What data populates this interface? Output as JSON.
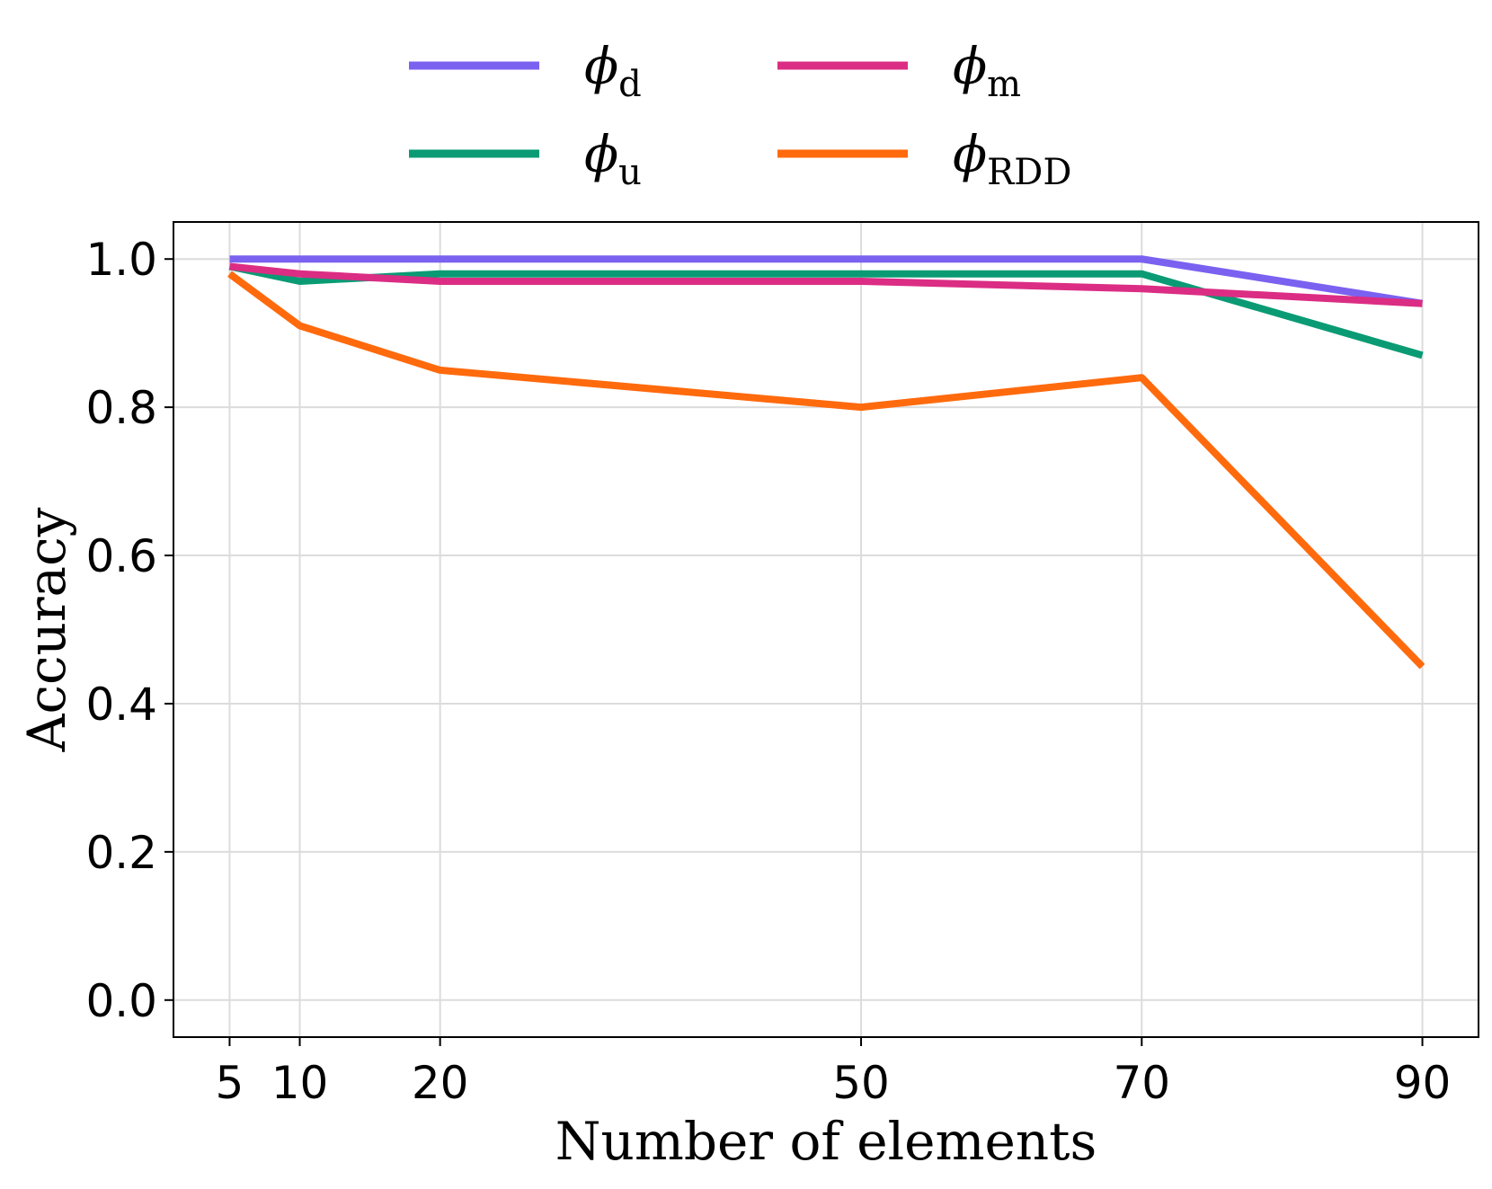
{
  "chart_data": {
    "type": "line",
    "title": "",
    "xlabel": "Number of elements",
    "ylabel": "Accuracy",
    "x": [
      5,
      10,
      20,
      50,
      70,
      90
    ],
    "xticks": [
      "5",
      "10",
      "20",
      "50",
      "70",
      "90"
    ],
    "yticks": [
      "0.0",
      "0.2",
      "0.4",
      "0.6",
      "0.8",
      "1.0"
    ],
    "xlim": [
      1,
      94
    ],
    "ylim": [
      -0.05,
      1.05
    ],
    "grid": true,
    "legend_position": "top",
    "series": [
      {
        "name": "ϕd",
        "symbol": "ϕ",
        "subscript": "d",
        "color": "#7B61F0",
        "values": [
          1.0,
          1.0,
          1.0,
          1.0,
          1.0,
          0.94
        ]
      },
      {
        "name": "ϕu",
        "symbol": "ϕ",
        "subscript": "u",
        "color": "#0A9B74",
        "values": [
          0.99,
          0.97,
          0.98,
          0.98,
          0.98,
          0.87
        ]
      },
      {
        "name": "ϕm",
        "symbol": "ϕ",
        "subscript": "m",
        "color": "#DB2D84",
        "values": [
          0.99,
          0.98,
          0.97,
          0.97,
          0.96,
          0.94
        ]
      },
      {
        "name": "ϕRDD",
        "symbol": "ϕ",
        "subscript": "RDD",
        "color": "#FF6A0D",
        "values": [
          0.98,
          0.91,
          0.85,
          0.8,
          0.84,
          0.45
        ]
      }
    ]
  }
}
